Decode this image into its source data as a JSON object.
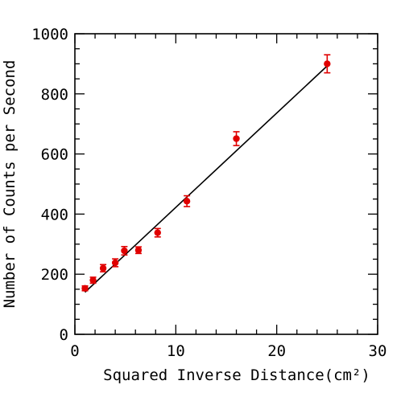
{
  "chart_data": {
    "type": "scatter",
    "title": "",
    "xlabel": "Squared Inverse Distance(cm²)",
    "ylabel": "Number of Counts per Second",
    "xlim": [
      0,
      30
    ],
    "ylim": [
      0,
      1000
    ],
    "x_ticks": [
      "0",
      "10",
      "20",
      "30"
    ],
    "y_ticks": [
      "0",
      "200",
      "400",
      "600",
      "800",
      "1000"
    ],
    "x_tick_values": [
      0,
      10,
      20,
      30
    ],
    "y_tick_values": [
      0,
      200,
      400,
      600,
      800,
      1000
    ],
    "grid": false,
    "marker_color": "#e00000",
    "line_color": "#000000",
    "points": [
      {
        "x": 1.0,
        "y": 153,
        "err": 8
      },
      {
        "x": 1.8,
        "y": 180,
        "err": 10
      },
      {
        "x": 2.8,
        "y": 220,
        "err": 12
      },
      {
        "x": 4.0,
        "y": 238,
        "err": 13
      },
      {
        "x": 4.9,
        "y": 278,
        "err": 14
      },
      {
        "x": 6.3,
        "y": 280,
        "err": 11
      },
      {
        "x": 8.2,
        "y": 338,
        "err": 14
      },
      {
        "x": 11.1,
        "y": 443,
        "err": 18
      },
      {
        "x": 16.0,
        "y": 651,
        "err": 23
      },
      {
        "x": 25.0,
        "y": 900,
        "err": 30
      }
    ],
    "fit_line": {
      "x": [
        1.0,
        25.0
      ],
      "y": [
        140,
        893
      ]
    }
  }
}
